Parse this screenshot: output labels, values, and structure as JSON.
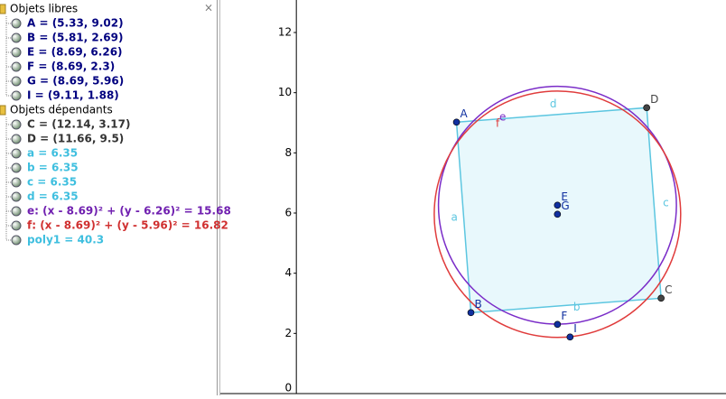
{
  "panel": {
    "close": "×",
    "groups": [
      {
        "title": "Objets libres",
        "items": [
          {
            "text": "A = (5.33, 9.02)",
            "color": "#00007f"
          },
          {
            "text": "B = (5.81, 2.69)",
            "color": "#00007f"
          },
          {
            "text": "E = (8.69, 6.26)",
            "color": "#00007f"
          },
          {
            "text": "F = (8.69, 2.3)",
            "color": "#00007f"
          },
          {
            "text": "G = (8.69, 5.96)",
            "color": "#00007f"
          },
          {
            "text": "I = (9.11, 1.88)",
            "color": "#00007f"
          }
        ]
      },
      {
        "title": "Objets dépendants",
        "items": [
          {
            "text": "C = (12.14, 3.17)",
            "color": "#333333"
          },
          {
            "text": "D = (11.66, 9.5)",
            "color": "#333333"
          },
          {
            "text": "a = 6.35",
            "color": "#3fbfdf"
          },
          {
            "text": "b = 6.35",
            "color": "#3fbfdf"
          },
          {
            "text": "c = 6.35",
            "color": "#3fbfdf"
          },
          {
            "text": "d = 6.35",
            "color": "#3fbfdf"
          },
          {
            "text": "e: (x - 8.69)² + (y - 6.26)² = 15.68",
            "color": "#7020b0"
          },
          {
            "text": "f: (x - 8.69)² + (y - 5.96)² = 16.82",
            "color": "#d03030"
          },
          {
            "text": "poly1 = 40.3",
            "color": "#3fbfdf"
          }
        ]
      }
    ]
  },
  "graphics": {
    "xlim": [
      -2.53,
      14.3
    ],
    "ylim": [
      0,
      13.08
    ],
    "yticks": [
      0,
      2,
      4,
      6,
      8,
      10,
      12
    ],
    "points": [
      {
        "label": "A",
        "x": 5.33,
        "y": 9.02,
        "color": "#1030a0"
      },
      {
        "label": "B",
        "x": 5.81,
        "y": 2.69,
        "color": "#1030a0"
      },
      {
        "label": "C",
        "x": 12.14,
        "y": 3.17,
        "color": "#444444"
      },
      {
        "label": "D",
        "x": 11.66,
        "y": 9.5,
        "color": "#444444"
      },
      {
        "label": "E",
        "x": 8.69,
        "y": 6.26,
        "color": "#1030a0"
      },
      {
        "label": "F",
        "x": 8.69,
        "y": 2.3,
        "color": "#1030a0"
      },
      {
        "label": "G",
        "x": 8.69,
        "y": 5.96,
        "color": "#1030a0"
      },
      {
        "label": "I",
        "x": 9.11,
        "y": 1.88,
        "color": "#1030a0"
      }
    ],
    "polygon": {
      "sides": [
        "a",
        "b",
        "c",
        "d"
      ],
      "color": "#5cc6e0",
      "fill": "#e8f8fc"
    },
    "circles": [
      {
        "label": "e",
        "cx": 8.69,
        "cy": 6.26,
        "r2": 15.68,
        "color": "#7a2cc8"
      },
      {
        "label": "f",
        "cx": 8.69,
        "cy": 5.96,
        "r2": 16.82,
        "color": "#e03c3c"
      }
    ]
  }
}
